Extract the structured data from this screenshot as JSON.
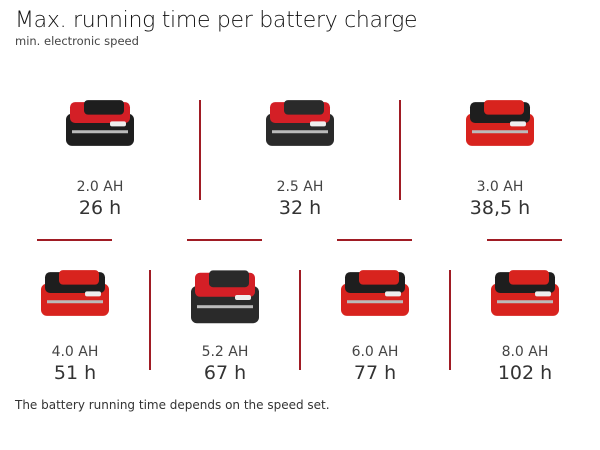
{
  "header": {
    "title": "Max. running time per battery charge",
    "subtitle": "min. electronic speed"
  },
  "batteries": [
    {
      "capacity": "2.0 AH",
      "runtime": "26 h",
      "body_color": "#1e1e1e",
      "accent_color": "#d41f26",
      "icon": "battery-pack-icon"
    },
    {
      "capacity": "2.5 AH",
      "runtime": "32 h",
      "body_color": "#2a2a2a",
      "accent_color": "#d41f26",
      "icon": "battery-pack-icon"
    },
    {
      "capacity": "3.0 AH",
      "runtime": "38,5 h",
      "body_color": "#d8231e",
      "accent_color": "#1e1e1e",
      "icon": "battery-pack-icon"
    },
    {
      "capacity": "4.0 AH",
      "runtime": "51 h",
      "body_color": "#d8231e",
      "accent_color": "#1e1e1e",
      "icon": "battery-pack-icon"
    },
    {
      "capacity": "5.2 AH",
      "runtime": "67 h",
      "body_color": "#2a2a2a",
      "accent_color": "#d41f26",
      "icon": "battery-pack-icon"
    },
    {
      "capacity": "6.0 AH",
      "runtime": "77 h",
      "body_color": "#d8231e",
      "accent_color": "#1e1e1e",
      "icon": "battery-pack-icon"
    },
    {
      "capacity": "8.0 AH",
      "runtime": "102 h",
      "body_color": "#d8231e",
      "accent_color": "#1e1e1e",
      "icon": "battery-pack-icon"
    }
  ],
  "divider_color": "#a01c24",
  "footer": {
    "note": "The battery running time depends on the speed set."
  }
}
